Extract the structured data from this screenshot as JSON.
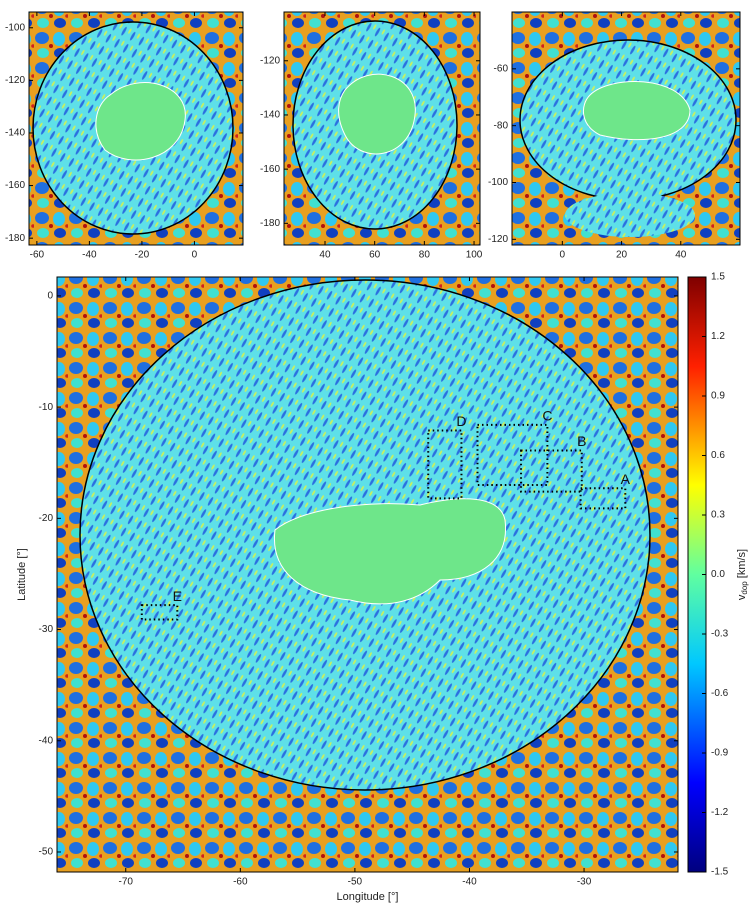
{
  "chart_data": [
    {
      "type": "image",
      "xlim": [
        -63,
        18.5
      ],
      "ylim": [
        -182.6,
        -94
      ],
      "xticks": [
        -60,
        -40,
        -20,
        0
      ],
      "yticks": [
        -100,
        -120,
        -140,
        -160,
        -180
      ]
    },
    {
      "type": "image",
      "xlim": [
        23.5,
        102.4
      ],
      "ylim": [
        -188,
        -102
      ],
      "xticks": [
        40,
        60,
        80,
        100
      ],
      "yticks": [
        -120,
        -140,
        -160,
        -180
      ]
    },
    {
      "type": "image",
      "xlim": [
        -17,
        60
      ],
      "ylim": [
        -122,
        -40
      ],
      "xticks": [
        0,
        20,
        40
      ],
      "yticks": [
        -60,
        -80,
        -100,
        -120
      ]
    },
    {
      "type": "image",
      "xlabel": "Longitude [°]",
      "ylabel": "Latitude [°]",
      "xlim": [
        -76,
        -21.8
      ],
      "ylim": [
        -51.8,
        1.7
      ],
      "xticks": [
        -70,
        -60,
        -50,
        -40,
        -30
      ],
      "yticks": [
        0,
        -10,
        -20,
        -30,
        -40,
        -50
      ],
      "regions": [
        {
          "label": "D",
          "x": [
            -43.6,
            -40.7
          ],
          "y": [
            -18.2,
            -12.1
          ]
        },
        {
          "label": "C",
          "x": [
            -39.3,
            -33.2
          ],
          "y": [
            -17.0,
            -11.6
          ]
        },
        {
          "label": "B",
          "x": [
            -35.5,
            -30.2
          ],
          "y": [
            -17.6,
            -13.9
          ]
        },
        {
          "label": "A",
          "x": [
            -30.3,
            -26.4
          ],
          "y": [
            -19.1,
            -17.3
          ]
        },
        {
          "label": "E",
          "x": [
            -68.6,
            -65.5
          ],
          "y": [
            -29.1,
            -27.8
          ]
        }
      ],
      "colorbar": {
        "symbol": "v",
        "subscript": "dop",
        "unit": "[km/s]",
        "lim": [
          -1.5,
          1.5
        ],
        "ticks": [
          1.5,
          1.2,
          0.9,
          0.6,
          0.3,
          {
            "value": 0,
            "label": "0.0"
          },
          -0.3,
          -0.6,
          -0.9,
          -1.2,
          -1.5
        ]
      }
    }
  ]
}
